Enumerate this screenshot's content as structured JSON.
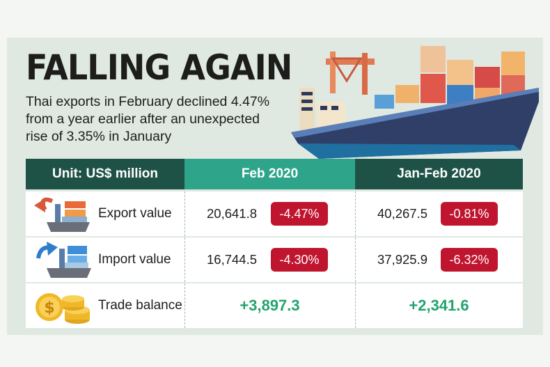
{
  "header": {
    "title": "FALLING AGAIN",
    "subtitle": "Thai exports in February declined 4.47% from a year earlier after an unexpected rise of 3.35% in January"
  },
  "table": {
    "columns": [
      "Unit: US$ million",
      "Feb 2020",
      "Jan-Feb 2020"
    ],
    "rows": [
      {
        "icon": "ship-export-icon",
        "label": "Export value",
        "feb_value": "20,641.8",
        "feb_change": "-4.47%",
        "janfeb_value": "40,267.5",
        "janfeb_change": "-0.81%"
      },
      {
        "icon": "ship-import-icon",
        "label": "Import value",
        "feb_value": "16,744.5",
        "feb_change": "-4.30%",
        "janfeb_value": "37,925.9",
        "janfeb_change": "-6.32%"
      },
      {
        "icon": "gold-coins-icon",
        "label": "Trade balance",
        "feb_value": "+3,897.3",
        "janfeb_value": "+2,341.6"
      }
    ]
  },
  "colors": {
    "header_dark": "#1f5247",
    "header_accent": "#2ea58a",
    "negative_badge": "#c0152f",
    "positive_text": "#23a36d",
    "panel_bg": "#dfe9e2"
  }
}
